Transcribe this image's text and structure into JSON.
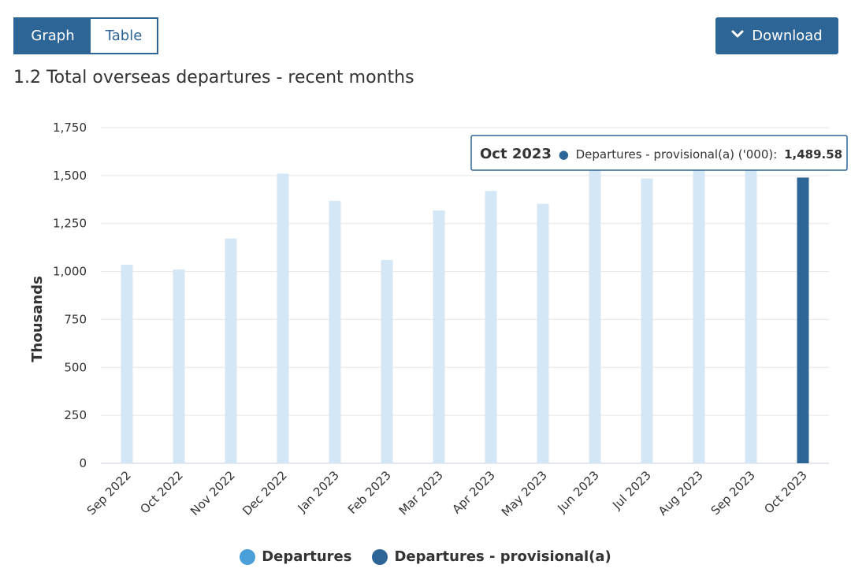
{
  "controls": {
    "tabs": [
      {
        "label": "Graph",
        "active": true
      },
      {
        "label": "Table",
        "active": false
      }
    ],
    "download_label": "Download",
    "download_icon": "chevron-down-icon"
  },
  "colors": {
    "primary": "#2e6597",
    "departures": "#d4e7f6",
    "departures_legend": "#4a9fd8",
    "provisional": "#2e6597"
  },
  "chart_data": {
    "type": "bar",
    "title": "1.2 Total overseas departures - recent months",
    "ylabel": "Thousands",
    "xlabel": "",
    "ylim": [
      0,
      1750
    ],
    "yticks": [
      "0",
      "250",
      "500",
      "750",
      "1,000",
      "1,250",
      "1,500",
      "1,750"
    ],
    "ytick_values": [
      0,
      250,
      500,
      750,
      1000,
      1250,
      1500,
      1750
    ],
    "grid": true,
    "categories": [
      "Sep 2022",
      "Oct 2022",
      "Nov 2022",
      "Dec 2022",
      "Jan 2023",
      "Feb 2023",
      "Mar 2023",
      "Apr 2023",
      "May 2023",
      "Jun 2023",
      "Jul 2023",
      "Aug 2023",
      "Sep 2023",
      "Oct 2023"
    ],
    "series": [
      {
        "name": "Departures",
        "values": [
          1035,
          1010,
          1172,
          1510,
          1368,
          1060,
          1318,
          1420,
          1353,
          1540,
          1485,
          1560,
          1545,
          null
        ]
      },
      {
        "name": "Departures - provisional(a)",
        "values": [
          null,
          null,
          null,
          null,
          null,
          null,
          null,
          null,
          null,
          null,
          null,
          null,
          null,
          1489.58
        ]
      }
    ],
    "legend_position": "bottom",
    "tooltip": {
      "category": "Oct 2023",
      "label": "Departures - provisional(a) ('000):",
      "value": "1,489.58"
    }
  }
}
